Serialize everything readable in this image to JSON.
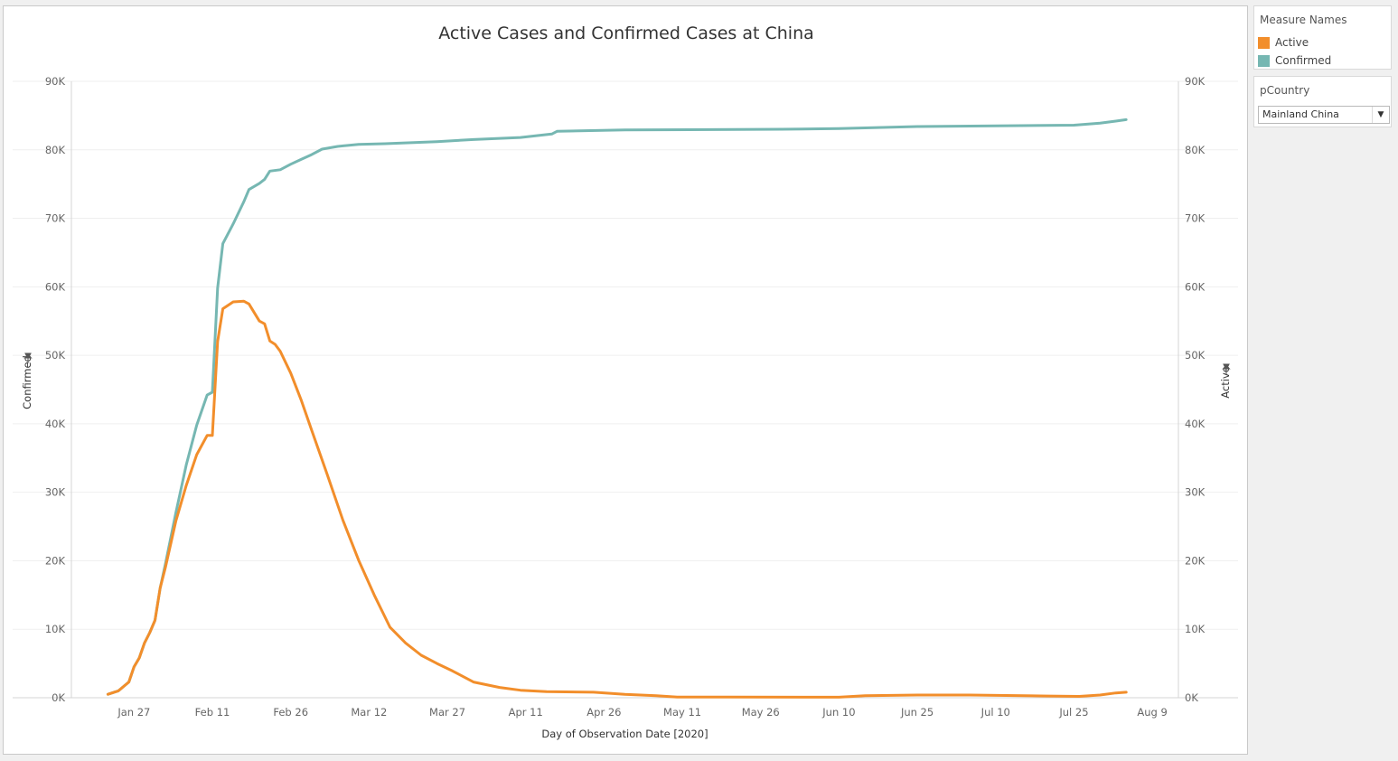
{
  "chart_data": {
    "type": "line",
    "title": "Active Cases and Confirmed Cases at China",
    "xlabel": "Day of Observation Date [2020]",
    "ylabel_left": "Confirmed",
    "ylabel_right": "Active",
    "x_tick_labels": [
      "Jan 27",
      "Feb 11",
      "Feb 26",
      "Mar 12",
      "Mar 27",
      "Apr 11",
      "Apr 26",
      "May 11",
      "May 26",
      "Jun 10",
      "Jun 25",
      "Jul 10",
      "Jul 25",
      "Aug 9"
    ],
    "y_tick_labels": [
      "0K",
      "10K",
      "20K",
      "30K",
      "40K",
      "50K",
      "60K",
      "70K",
      "80K",
      "90K"
    ],
    "ylim": [
      0,
      90000
    ],
    "x_range": [
      "2020-01-15",
      "2020-08-14"
    ],
    "grid": true,
    "legend_title": "Measure Names",
    "series": [
      {
        "name": "Active",
        "color": "#f28e2b",
        "points": [
          [
            "2020-01-22",
            500
          ],
          [
            "2020-01-24",
            1000
          ],
          [
            "2020-01-26",
            2300
          ],
          [
            "2020-01-27",
            4500
          ],
          [
            "2020-01-28",
            5800
          ],
          [
            "2020-01-29",
            8000
          ],
          [
            "2020-01-30",
            9500
          ],
          [
            "2020-01-31",
            11300
          ],
          [
            "2020-02-01",
            16000
          ],
          [
            "2020-02-02",
            19000
          ],
          [
            "2020-02-04",
            25800
          ],
          [
            "2020-02-06",
            31000
          ],
          [
            "2020-02-08",
            35500
          ],
          [
            "2020-02-10",
            38300
          ],
          [
            "2020-02-11",
            38300
          ],
          [
            "2020-02-12",
            52000
          ],
          [
            "2020-02-13",
            56800
          ],
          [
            "2020-02-15",
            57800
          ],
          [
            "2020-02-17",
            57900
          ],
          [
            "2020-02-18",
            57500
          ],
          [
            "2020-02-20",
            55000
          ],
          [
            "2020-02-21",
            54600
          ],
          [
            "2020-02-22",
            52100
          ],
          [
            "2020-02-23",
            51600
          ],
          [
            "2020-02-24",
            50600
          ],
          [
            "2020-02-26",
            47400
          ],
          [
            "2020-02-28",
            43500
          ],
          [
            "2020-03-01",
            39100
          ],
          [
            "2020-03-04",
            32600
          ],
          [
            "2020-03-07",
            25900
          ],
          [
            "2020-03-10",
            20100
          ],
          [
            "2020-03-13",
            15000
          ],
          [
            "2020-03-16",
            10300
          ],
          [
            "2020-03-19",
            8000
          ],
          [
            "2020-03-22",
            6200
          ],
          [
            "2020-03-25",
            5000
          ],
          [
            "2020-03-28",
            3900
          ],
          [
            "2020-04-01",
            2300
          ],
          [
            "2020-04-06",
            1500
          ],
          [
            "2020-04-10",
            1100
          ],
          [
            "2020-04-15",
            900
          ],
          [
            "2020-04-24",
            800
          ],
          [
            "2020-04-30",
            500
          ],
          [
            "2020-05-06",
            300
          ],
          [
            "2020-05-10",
            100
          ],
          [
            "2020-05-20",
            90
          ],
          [
            "2020-06-10",
            80
          ],
          [
            "2020-06-15",
            300
          ],
          [
            "2020-06-25",
            400
          ],
          [
            "2020-07-05",
            400
          ],
          [
            "2020-07-20",
            250
          ],
          [
            "2020-07-26",
            200
          ],
          [
            "2020-07-30",
            400
          ],
          [
            "2020-08-02",
            700
          ],
          [
            "2020-08-04",
            800
          ]
        ]
      },
      {
        "name": "Confirmed",
        "color": "#76b7b2",
        "points": [
          [
            "2020-01-22",
            500
          ],
          [
            "2020-01-24",
            1000
          ],
          [
            "2020-01-26",
            2300
          ],
          [
            "2020-01-27",
            4500
          ],
          [
            "2020-01-28",
            5800
          ],
          [
            "2020-01-29",
            8000
          ],
          [
            "2020-01-30",
            9500
          ],
          [
            "2020-01-31",
            11300
          ],
          [
            "2020-02-01",
            16000
          ],
          [
            "2020-02-02",
            19500
          ],
          [
            "2020-02-04",
            27000
          ],
          [
            "2020-02-06",
            34000
          ],
          [
            "2020-02-08",
            39800
          ],
          [
            "2020-02-10",
            44200
          ],
          [
            "2020-02-11",
            44600
          ],
          [
            "2020-02-12",
            59800
          ],
          [
            "2020-02-13",
            66300
          ],
          [
            "2020-02-15",
            69200
          ],
          [
            "2020-02-17",
            72400
          ],
          [
            "2020-02-18",
            74200
          ],
          [
            "2020-02-20",
            75100
          ],
          [
            "2020-02-21",
            75700
          ],
          [
            "2020-02-22",
            76900
          ],
          [
            "2020-02-24",
            77100
          ],
          [
            "2020-02-26",
            77900
          ],
          [
            "2020-02-28",
            78600
          ],
          [
            "2020-03-01",
            79300
          ],
          [
            "2020-03-03",
            80100
          ],
          [
            "2020-03-06",
            80500
          ],
          [
            "2020-03-10",
            80800
          ],
          [
            "2020-03-15",
            80900
          ],
          [
            "2020-03-25",
            81200
          ],
          [
            "2020-04-01",
            81500
          ],
          [
            "2020-04-10",
            81800
          ],
          [
            "2020-04-16",
            82300
          ],
          [
            "2020-04-17",
            82700
          ],
          [
            "2020-04-30",
            82900
          ],
          [
            "2020-05-30",
            83000
          ],
          [
            "2020-06-10",
            83100
          ],
          [
            "2020-06-15",
            83200
          ],
          [
            "2020-06-25",
            83400
          ],
          [
            "2020-07-10",
            83500
          ],
          [
            "2020-07-25",
            83600
          ],
          [
            "2020-07-30",
            83900
          ],
          [
            "2020-08-02",
            84200
          ],
          [
            "2020-08-04",
            84400
          ]
        ]
      }
    ]
  },
  "legend": {
    "title": "Measure Names",
    "items": [
      {
        "label": "Active",
        "color": "#f28e2b"
      },
      {
        "label": "Confirmed",
        "color": "#76b7b2"
      }
    ]
  },
  "filter": {
    "title": "pCountry",
    "selected": "Mainland China"
  }
}
